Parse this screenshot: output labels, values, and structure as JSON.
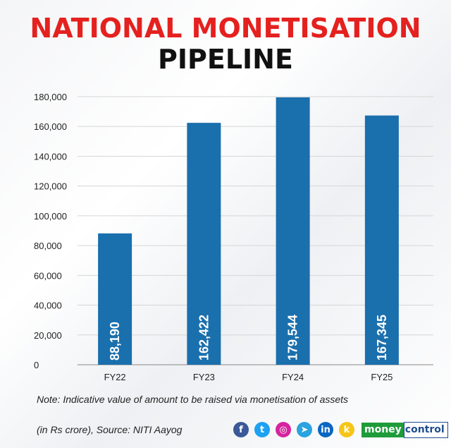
{
  "title_line1": "NATIONAL MONETISATION",
  "title_line2": "PIPELINE",
  "note": "Note: Indicative value of amount to be raised via monetisation of assets",
  "source": "(in Rs crore), Source: NITI Aayog",
  "brand": {
    "part1": "money",
    "part2": "control"
  },
  "social_icons": [
    {
      "name": "facebook-icon",
      "glyph": "f",
      "color": "#3b5998"
    },
    {
      "name": "twitter-icon",
      "glyph": "t",
      "color": "#1da1f2"
    },
    {
      "name": "instagram-icon",
      "glyph": "◎",
      "color": "#d6249f"
    },
    {
      "name": "telegram-icon",
      "glyph": "➤",
      "color": "#2aa3df"
    },
    {
      "name": "linkedin-icon",
      "glyph": "in",
      "color": "#0a66c2"
    },
    {
      "name": "koo-icon",
      "glyph": "k",
      "color": "#f5c518"
    }
  ],
  "colors": {
    "bar": "#1a6fad",
    "title_red": "#e4211f",
    "grid": "#d6d6d6"
  },
  "chart_data": {
    "type": "bar",
    "categories": [
      "FY22",
      "FY23",
      "FY24",
      "FY25"
    ],
    "values": [
      88190,
      162422,
      179544,
      167345
    ],
    "value_labels": [
      "88,190",
      "162,422",
      "179,544",
      "167,345"
    ],
    "title": "NATIONAL MONETISATION PIPELINE",
    "xlabel": "",
    "ylabel": "",
    "ylim": [
      0,
      180000
    ],
    "yticks": [
      0,
      20000,
      40000,
      60000,
      80000,
      100000,
      120000,
      140000,
      160000,
      180000
    ],
    "ytick_labels": [
      "0",
      "20,000",
      "40,000",
      "60,000",
      "80,000",
      "100,000",
      "120,000",
      "140,000",
      "160,000",
      "180,000"
    ],
    "grid": true,
    "legend": "none"
  }
}
